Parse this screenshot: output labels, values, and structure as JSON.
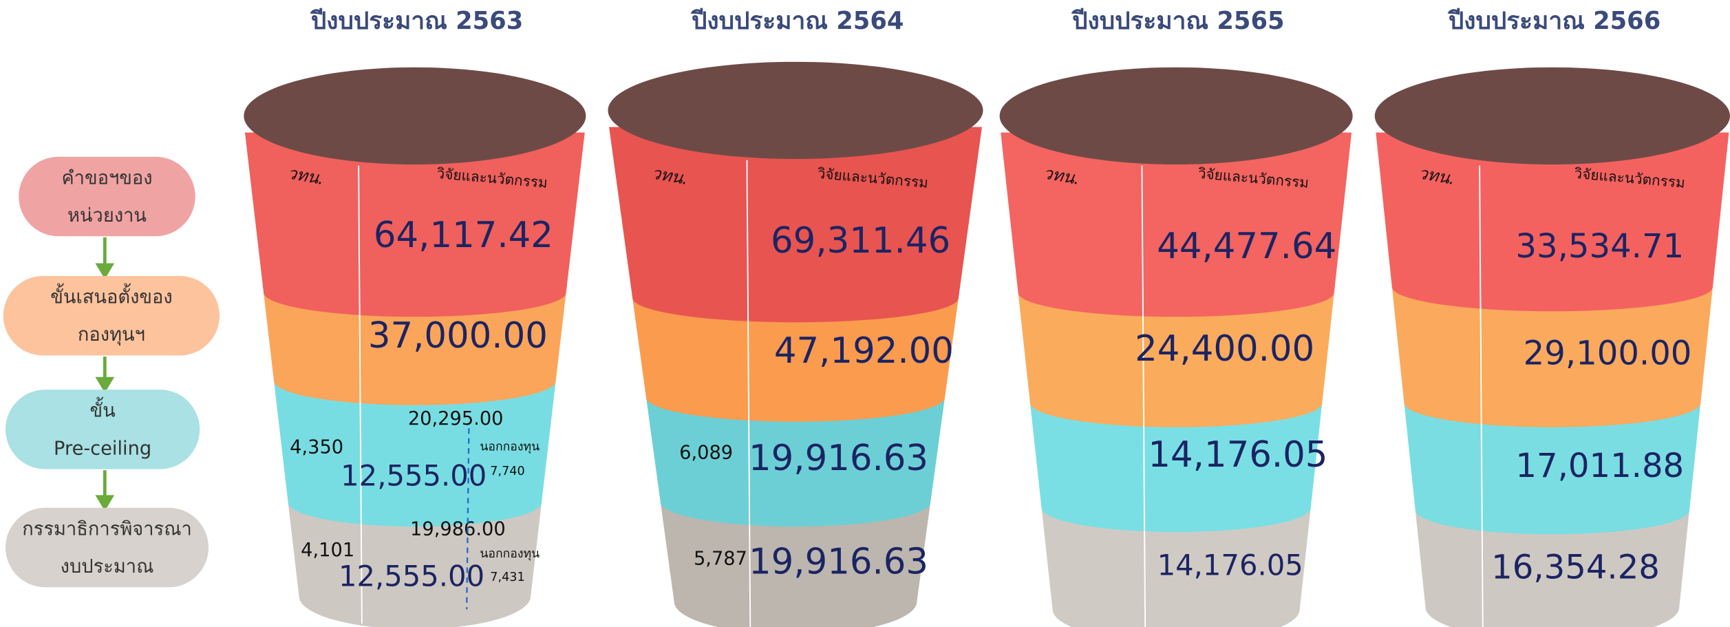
{
  "steps": [
    {
      "lines": [
        "คำขอฯของ",
        "หน่วยงาน"
      ]
    },
    {
      "lines": [
        "ขั้นเสนอตั้งของ",
        "กองทุนฯ"
      ]
    },
    {
      "lines": [
        "ขั้น",
        "Pre-ceiling"
      ]
    },
    {
      "lines": [
        "กรรมาธิการพิจารณา",
        "งบประมาณ"
      ]
    }
  ],
  "years": [
    {
      "title": "ปีงบประมาณ 2563",
      "left_label": "วทน.",
      "right_label": "วิจัยและนวัตกรรม",
      "levels": [
        {
          "value": "64,117.42"
        },
        {
          "value": "37,000.00"
        },
        {
          "total": "20,295.00",
          "left": "4,350",
          "value": "12,555.00",
          "outside_label": "นอกกองทุน",
          "outside": "7,740"
        },
        {
          "total": "19,986.00",
          "left": "4,101",
          "value": "12,555.00",
          "outside_label": "นอกกองทุน",
          "outside": "7,431"
        }
      ]
    },
    {
      "title": "ปีงบประมาณ 2564",
      "left_label": "วทน.",
      "right_label": "วิจัยและนวัตกรรม",
      "levels": [
        {
          "value": "69,311.46"
        },
        {
          "value": "47,192.00"
        },
        {
          "left": "6,089",
          "value": "19,916.63"
        },
        {
          "left": "5,787",
          "value": "19,916.63"
        }
      ]
    },
    {
      "title": "ปีงบประมาณ 2565",
      "left_label": "วทน.",
      "right_label": "วิจัยและนวัตกรรม",
      "levels": [
        {
          "value": "44,477.64"
        },
        {
          "value": "24,400.00"
        },
        {
          "value": "14,176.05"
        },
        {
          "value": "14,176.05"
        }
      ]
    },
    {
      "title": "ปีงบประมาณ 2566",
      "left_label": "วทน.",
      "right_label": "วิจัยและนวัตกรรม",
      "levels": [
        {
          "value": "33,534.71"
        },
        {
          "value": "29,100.00"
        },
        {
          "value": "17,011.88"
        },
        {
          "value": "16,354.28"
        }
      ]
    }
  ]
}
